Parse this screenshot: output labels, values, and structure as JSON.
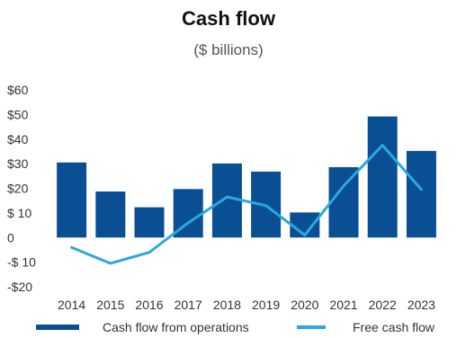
{
  "chart_data": {
    "type": "bar",
    "title": "Cash flow",
    "subtitle": "($ billions)",
    "xlabel": "",
    "ylabel": "",
    "categories": [
      "2014",
      "2015",
      "2016",
      "2017",
      "2018",
      "2019",
      "2020",
      "2021",
      "2022",
      "2023"
    ],
    "ylim": [
      -20,
      60
    ],
    "yticks": [
      -20,
      -10,
      0,
      10,
      20,
      30,
      40,
      50,
      60
    ],
    "ytick_labels": [
      "-$20",
      "-$ 10",
      "0",
      "$ 10",
      "$20",
      "$30",
      "$40",
      "$50",
      "$60"
    ],
    "grid": false,
    "legend_position": "bottom",
    "series": [
      {
        "name": "Cash flow from operations",
        "type": "bar",
        "color": "#0a4f93",
        "values": [
          30.5,
          18.7,
          12.3,
          19.7,
          30.1,
          26.8,
          10.2,
          28.6,
          49.2,
          35.2
        ]
      },
      {
        "name": "Free cash flow",
        "type": "line",
        "color": "#2aa8e0",
        "values": [
          -4.0,
          -10.5,
          -6.0,
          6.0,
          16.5,
          13.0,
          1.0,
          21.0,
          37.5,
          19.5
        ]
      }
    ]
  }
}
